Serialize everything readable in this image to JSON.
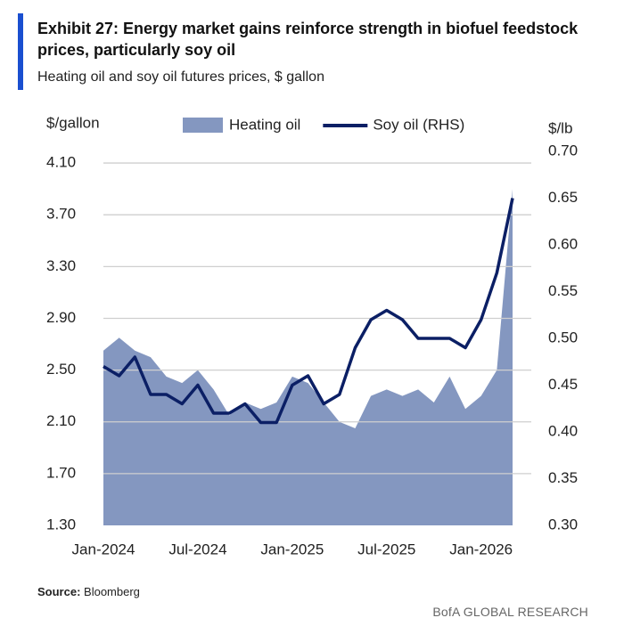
{
  "title": "Exhibit 27: Energy market gains reinforce strength in biofuel feedstock prices, particularly soy oil",
  "subtitle": "Heating oil and soy oil futures prices, $ gallon",
  "source_label": "Source:",
  "source": "Bloomberg",
  "footer": "BofA GLOBAL RESEARCH",
  "chart_data": {
    "type": "area-line",
    "y_label": "$/gallon",
    "y2_label": "$/lb",
    "x": [
      "2024-01",
      "2024-02",
      "2024-03",
      "2024-04",
      "2024-05",
      "2024-06",
      "2024-07",
      "2024-08",
      "2024-09",
      "2024-10",
      "2024-11",
      "2024-12",
      "2025-01",
      "2025-02",
      "2025-03",
      "2025-04",
      "2025-05",
      "2025-06",
      "2025-07",
      "2025-08",
      "2025-09",
      "2025-10",
      "2025-11",
      "2025-12",
      "2026-01",
      "2026-02",
      "2026-03"
    ],
    "xticks": [
      {
        "value": "2024-01",
        "label": "Jan-2024"
      },
      {
        "value": "2024-07",
        "label": "Jul-2024"
      },
      {
        "value": "2025-01",
        "label": "Jan-2025"
      },
      {
        "value": "2025-07",
        "label": "Jul-2025"
      },
      {
        "value": "2026-01",
        "label": "Jan-2026"
      }
    ],
    "ylim": [
      1.3,
      4.19
    ],
    "yticks": [
      {
        "value": 1.3,
        "label": "1.30"
      },
      {
        "value": 1.7,
        "label": "1.70"
      },
      {
        "value": 2.1,
        "label": "2.10"
      },
      {
        "value": 2.5,
        "label": "2.50"
      },
      {
        "value": 2.9,
        "label": "2.90"
      },
      {
        "value": 3.3,
        "label": "3.30"
      },
      {
        "value": 3.7,
        "label": "3.70"
      },
      {
        "value": 4.1,
        "label": "4.10"
      }
    ],
    "y2lim": [
      0.3,
      0.7
    ],
    "y2ticks": [
      {
        "value": 0.3,
        "label": "0.30"
      },
      {
        "value": 0.35,
        "label": "0.35"
      },
      {
        "value": 0.4,
        "label": "0.40"
      },
      {
        "value": 0.45,
        "label": "0.45"
      },
      {
        "value": 0.5,
        "label": "0.50"
      },
      {
        "value": 0.55,
        "label": "0.55"
      },
      {
        "value": 0.6,
        "label": "0.60"
      },
      {
        "value": 0.65,
        "label": "0.65"
      },
      {
        "value": 0.7,
        "label": "0.70"
      }
    ],
    "grid": true,
    "series": [
      {
        "name": "Heating oil",
        "kind": "area",
        "color": "#8497c0",
        "values": [
          2.65,
          2.75,
          2.65,
          2.6,
          2.45,
          2.4,
          2.5,
          2.35,
          2.15,
          2.25,
          2.2,
          2.25,
          2.45,
          2.4,
          2.25,
          2.1,
          2.05,
          2.3,
          2.35,
          2.3,
          2.35,
          2.25,
          2.45,
          2.2,
          2.3,
          2.5,
          3.9
        ]
      },
      {
        "name": "Soy oil (RHS)",
        "kind": "line",
        "axis": "y2",
        "color": "#0b1f65",
        "values": [
          0.47,
          0.46,
          0.48,
          0.44,
          0.44,
          0.43,
          0.45,
          0.42,
          0.42,
          0.43,
          0.41,
          0.41,
          0.45,
          0.46,
          0.43,
          0.44,
          0.49,
          0.52,
          0.53,
          0.52,
          0.5,
          0.5,
          0.5,
          0.49,
          0.52,
          0.57,
          0.65
        ]
      }
    ]
  }
}
